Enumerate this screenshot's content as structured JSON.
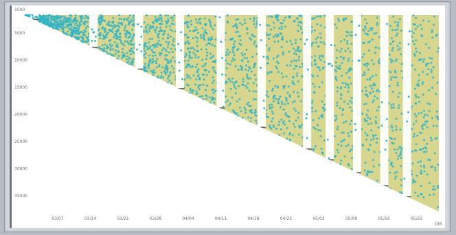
{
  "chart_data": {
    "type": "scatter",
    "title": "",
    "xlabel": "",
    "ylabel": "",
    "y_tick_labels": [
      "1500",
      "5000",
      "10000",
      "15000",
      "20000",
      "25000",
      "30000",
      "35000"
    ],
    "x_tick_labels": [
      "03/07",
      "03/14",
      "03/21",
      "03/28",
      "04/04",
      "04/11",
      "04/18",
      "04/25",
      "05/02",
      "05/09",
      "05/16",
      "05/23"
    ],
    "x_unit_label": "DM",
    "colors": {
      "dense_fill": "#cfcf7a",
      "point": "#2fb4c8",
      "gap_marker": "#5a5a5a"
    },
    "gap_band_dates": [
      "02/28",
      "03/13",
      "03/23",
      "04/01",
      "04/10",
      "04/19",
      "04/29",
      "05/04",
      "05/10",
      "05/16",
      "05/21"
    ]
  }
}
